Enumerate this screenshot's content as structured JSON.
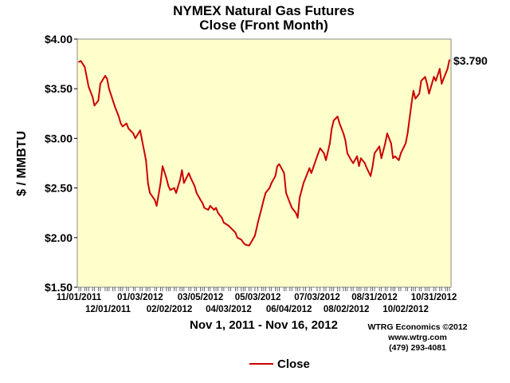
{
  "chart_data": {
    "type": "line",
    "title": "NYMEX Natural Gas Futures",
    "subtitle": "Close (Front Month)",
    "ylabel": "$ / MMBTU",
    "xlabel": "Nov 1, 2011 - Nov 16, 2012",
    "ylim": [
      1.5,
      4.0
    ],
    "yticks": [
      "$1.50",
      "$2.00",
      "$2.50",
      "$3.00",
      "$3.50",
      "$4.00"
    ],
    "xticks_upper": [
      "11/01/2011",
      "01/03/2012",
      "03/05/2012",
      "05/03/2012",
      "07/03/2012",
      "08/31/2012",
      "10/31/2012"
    ],
    "xticks_lower": [
      "12/01/2011",
      "02/02/2012",
      "04/03/2012",
      "06/04/2012",
      "08/02/2012",
      "10/02/2012"
    ],
    "grid": false,
    "background": "#ffffcc",
    "line_color": "#cc0000",
    "legend_position": "bottom",
    "end_label": "$3.790",
    "credits": [
      "WTRG Economics  ©2012",
      "www.wtrg.com",
      "(479) 293-4081"
    ],
    "series": [
      {
        "name": "Close",
        "x": [
          "11/01/2011",
          "11/03/2011",
          "11/07/2011",
          "11/09/2011",
          "11/11/2011",
          "11/15/2011",
          "11/17/2011",
          "11/21/2011",
          "11/23/2011",
          "11/28/2011",
          "11/30/2011",
          "12/02/2011",
          "12/06/2011",
          "12/08/2011",
          "12/12/2011",
          "12/14/2011",
          "12/16/2011",
          "12/20/2011",
          "12/22/2011",
          "12/27/2011",
          "12/29/2011",
          "01/03/2012",
          "01/05/2012",
          "01/09/2012",
          "01/11/2012",
          "01/13/2012",
          "01/18/2012",
          "01/20/2012",
          "01/24/2012",
          "01/26/2012",
          "01/30/2012",
          "02/01/2012",
          "02/03/2012",
          "02/07/2012",
          "02/09/2012",
          "02/13/2012",
          "02/15/2012",
          "02/17/2012",
          "02/22/2012",
          "02/24/2012",
          "02/28/2012",
          "03/01/2012",
          "03/05/2012",
          "03/07/2012",
          "03/09/2012",
          "03/13/2012",
          "03/15/2012",
          "03/19/2012",
          "03/21/2012",
          "03/23/2012",
          "03/27/2012",
          "03/29/2012",
          "04/03/2012",
          "04/05/2012",
          "04/10/2012",
          "04/12/2012",
          "04/16/2012",
          "04/18/2012",
          "04/20/2012",
          "04/24/2012",
          "04/26/2012",
          "04/30/2012",
          "05/03/2012",
          "05/07/2012",
          "05/09/2012",
          "05/11/2012",
          "05/15/2012",
          "05/17/2012",
          "05/21/2012",
          "05/23/2012",
          "05/25/2012",
          "05/30/2012",
          "06/01/2012",
          "06/05/2012",
          "06/07/2012",
          "06/11/2012",
          "06/13/2012",
          "06/15/2012",
          "06/19/2012",
          "06/21/2012",
          "06/25/2012",
          "06/27/2012",
          "07/03/2012",
          "07/06/2012",
          "07/10/2012",
          "07/12/2012",
          "07/16/2012",
          "07/18/2012",
          "07/20/2012",
          "07/24/2012",
          "07/26/2012",
          "07/30/2012",
          "08/01/2012",
          "08/03/2012",
          "08/07/2012",
          "08/09/2012",
          "08/13/2012",
          "08/15/2012",
          "08/17/2012",
          "08/21/2012",
          "08/23/2012",
          "08/27/2012",
          "08/29/2012",
          "08/31/2012",
          "09/05/2012",
          "09/07/2012",
          "09/11/2012",
          "09/13/2012",
          "09/17/2012",
          "09/19/2012",
          "09/21/2012",
          "09/25/2012",
          "09/27/2012",
          "10/02/2012",
          "10/04/2012",
          "10/08/2012",
          "10/10/2012",
          "10/12/2012",
          "10/16/2012",
          "10/18/2012",
          "10/22/2012",
          "10/24/2012",
          "10/26/2012",
          "10/31/2012",
          "11/02/2012",
          "11/06/2012",
          "11/08/2012",
          "11/12/2012",
          "11/14/2012",
          "11/16/2012"
        ],
        "values": [
          3.77,
          3.78,
          3.72,
          3.62,
          3.52,
          3.42,
          3.33,
          3.38,
          3.55,
          3.63,
          3.6,
          3.5,
          3.38,
          3.32,
          3.22,
          3.15,
          3.12,
          3.15,
          3.1,
          3.05,
          3.0,
          3.08,
          2.98,
          2.78,
          2.55,
          2.45,
          2.38,
          2.32,
          2.55,
          2.72,
          2.6,
          2.52,
          2.48,
          2.5,
          2.45,
          2.58,
          2.68,
          2.55,
          2.65,
          2.6,
          2.52,
          2.45,
          2.38,
          2.35,
          2.3,
          2.28,
          2.32,
          2.28,
          2.3,
          2.25,
          2.2,
          2.15,
          2.12,
          2.1,
          2.05,
          2.0,
          1.98,
          1.95,
          1.93,
          1.92,
          1.95,
          2.02,
          2.15,
          2.3,
          2.38,
          2.45,
          2.5,
          2.55,
          2.62,
          2.72,
          2.74,
          2.65,
          2.45,
          2.35,
          2.3,
          2.25,
          2.2,
          2.4,
          2.55,
          2.6,
          2.7,
          2.65,
          2.82,
          2.9,
          2.85,
          2.78,
          2.95,
          3.1,
          3.18,
          3.22,
          3.15,
          3.05,
          2.98,
          2.85,
          2.78,
          2.75,
          2.82,
          2.72,
          2.8,
          2.75,
          2.7,
          2.62,
          2.72,
          2.85,
          2.92,
          2.8,
          2.95,
          3.05,
          2.95,
          2.8,
          2.82,
          2.78,
          2.85,
          2.95,
          3.05,
          3.35,
          3.48,
          3.4,
          3.45,
          3.58,
          3.62,
          3.55,
          3.45,
          3.62,
          3.58,
          3.7,
          3.55,
          3.65,
          3.7,
          3.79
        ]
      }
    ]
  }
}
